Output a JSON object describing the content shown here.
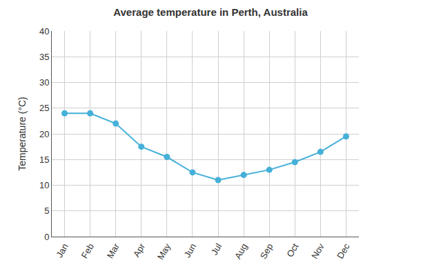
{
  "chart_data": {
    "type": "line",
    "title": "Average temperature in Perth, Australia",
    "y_label": "Temperature (°C)",
    "categories": [
      "Jan",
      "Feb",
      "Mar",
      "Apr",
      "May",
      "Jun",
      "Jul",
      "Aug",
      "Sep",
      "Oct",
      "Nov",
      "Dec"
    ],
    "values": [
      24,
      24,
      22,
      17.5,
      15.5,
      12.5,
      11,
      12,
      13,
      14.5,
      16.5,
      19.5
    ],
    "color": "#45b0d8",
    "marker": "circle",
    "ylim": [
      0,
      40
    ],
    "yticks": [
      0,
      5,
      10,
      15,
      20,
      25,
      30,
      35,
      40
    ],
    "grid": true
  }
}
